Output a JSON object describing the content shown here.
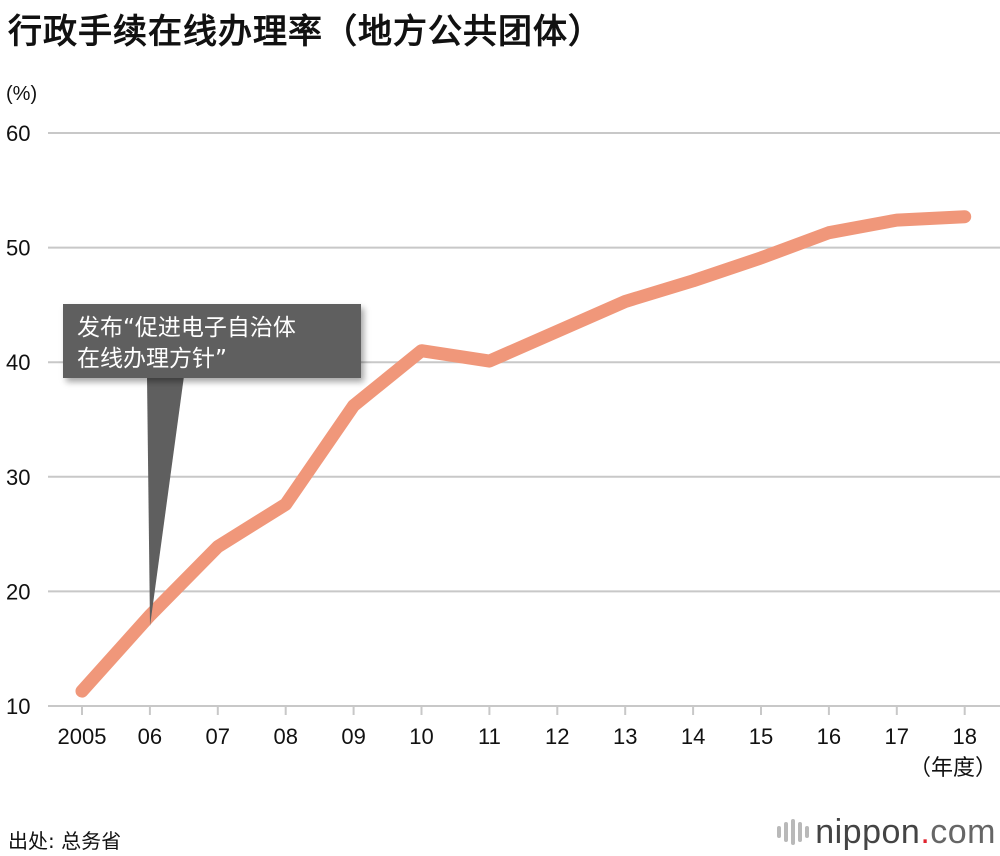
{
  "title": "行政手续在线办理率（地方公共团体）",
  "source": "出处: 总务省",
  "logo": {
    "name": "nippon",
    "dot": ".",
    "tld": "com"
  },
  "colors": {
    "line": "#f0977a",
    "grid": "#c8c8c8",
    "callout_bg": "#5f5f5f"
  },
  "callout": {
    "line1": "发布“促进电子自治体",
    "line2": "在线办理方针”"
  },
  "chart_data": {
    "type": "line",
    "title": "行政手续在线办理率（地方公共团体）",
    "ylabel": "(%)",
    "xlabel": "（年度）",
    "ylim": [
      10,
      60
    ],
    "yticks": [
      10,
      20,
      30,
      40,
      50,
      60
    ],
    "grid": true,
    "categories": [
      "2005",
      "06",
      "07",
      "08",
      "09",
      "10",
      "11",
      "12",
      "13",
      "14",
      "15",
      "16",
      "17",
      "18"
    ],
    "series": [
      {
        "values": [
          11.3,
          17.9,
          23.9,
          27.6,
          36.2,
          41.0,
          40.1,
          42.7,
          45.3,
          47.1,
          49.1,
          51.3,
          52.4,
          52.7
        ]
      }
    ],
    "annotations": [
      {
        "text": "发布“促进电子自治体在线办理方针”",
        "x": "06"
      }
    ]
  }
}
